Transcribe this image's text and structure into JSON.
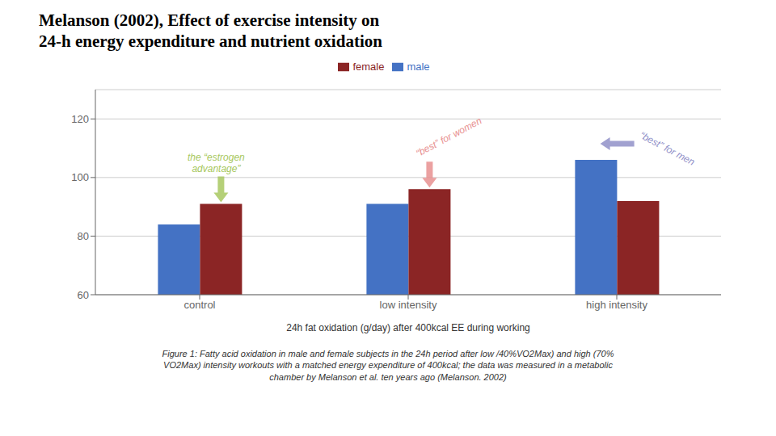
{
  "chart_data": {
    "type": "bar",
    "title": "Melanson (2002), Effect of exercise intensity on\n24-h energy expenditure and nutrient oxidation",
    "categories": [
      "control",
      "low intensity",
      "high intensity"
    ],
    "series": [
      {
        "name": "male",
        "color": "#4472C4",
        "values": [
          84,
          91,
          106
        ]
      },
      {
        "name": "female",
        "color": "#8B2525",
        "values": [
          91,
          96,
          92
        ]
      }
    ],
    "ylim": [
      60,
      130
    ],
    "yticks": [
      60,
      80,
      100,
      120
    ],
    "xlabel": "24h fat oxidation (g/day) after 400kcal EE during working",
    "grid": true,
    "legend": "top",
    "annotations": [
      {
        "text": "the “estrogen\nadvantage”",
        "color": "#A8C860",
        "category": "control",
        "series": "female"
      },
      {
        "text": "“best” for women",
        "color": "#E89090",
        "category": "low intensity",
        "series": "female"
      },
      {
        "text": "“best” for men",
        "color": "#9090C8",
        "category": "high intensity",
        "series": "male"
      }
    ],
    "caption": "Figure 1: Fatty acid oxidation in male and female subjects in the 24h period after low /40%VO2Max) and high (70%\nVO2Max) intensity workouts with a matched energy expenditure of 400kcal; the data was measured in a metabolic\nchamber by Melanson et al. ten years ago (Melanson. 2002)"
  }
}
